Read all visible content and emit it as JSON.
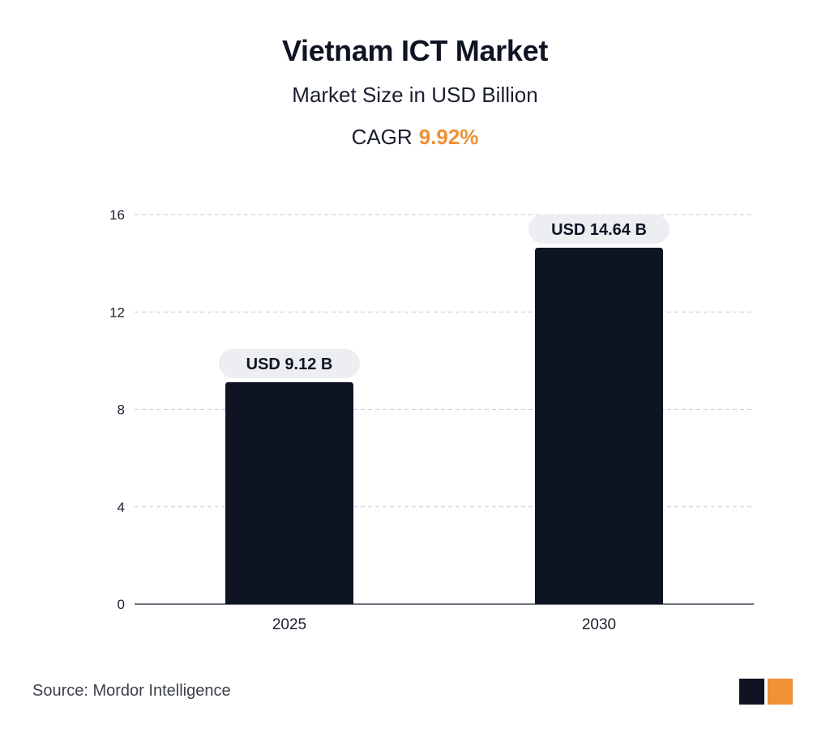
{
  "header": {
    "title": "Vietnam ICT Market",
    "subtitle": "Market Size in USD Billion",
    "cagr_label": "CAGR",
    "cagr_value": "9.92%"
  },
  "chart_data": {
    "type": "bar",
    "categories": [
      "2025",
      "2030"
    ],
    "values": [
      9.12,
      14.64
    ],
    "data_labels": [
      "USD 9.12 B",
      "USD 14.64 B"
    ],
    "title": "Vietnam ICT Market",
    "subtitle": "Market Size in USD Billion",
    "xlabel": "",
    "ylabel": "",
    "ylim": [
      0,
      16
    ],
    "yticks": [
      0,
      4,
      8,
      12,
      16
    ],
    "grid": true,
    "bar_color": "#0f1423",
    "label_bg_color": "#eceef2"
  },
  "footer": {
    "source": "Source: Mordor Intelligence"
  },
  "colors": {
    "accent": "#ee9137",
    "dark": "#0f1423"
  },
  "logo": {
    "icon": "mordor-logo-icon"
  }
}
